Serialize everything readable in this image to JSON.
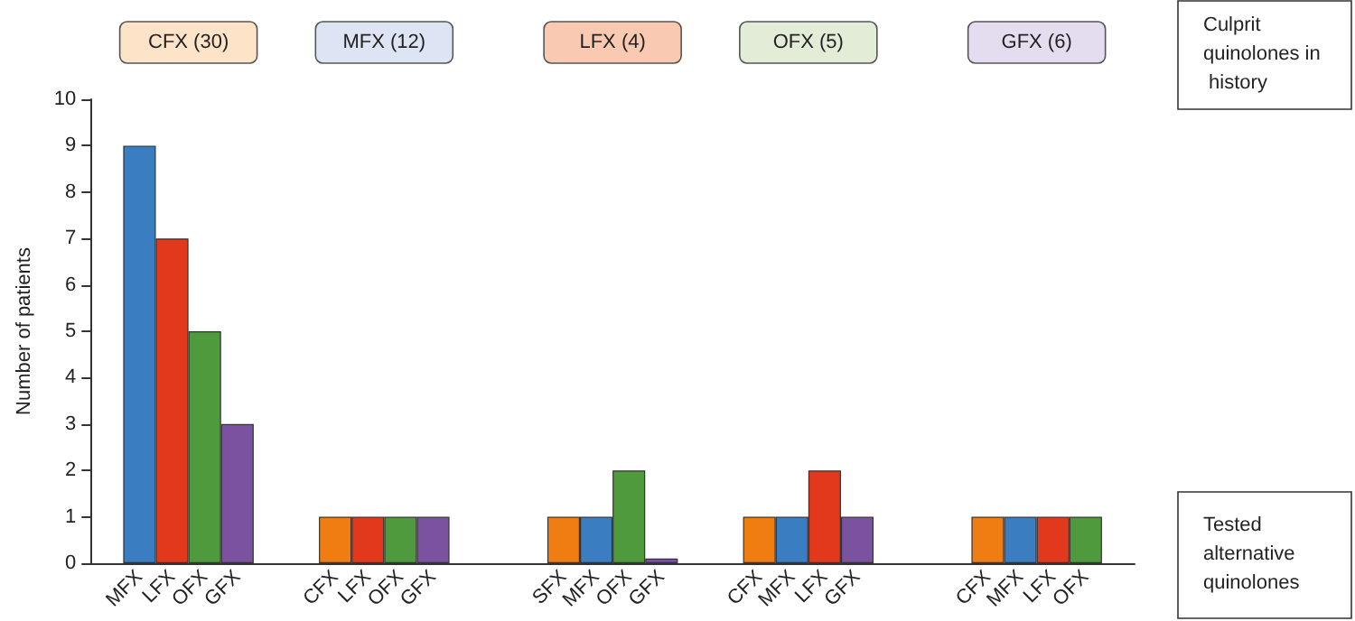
{
  "chart_data": {
    "type": "bar",
    "ylabel": "Number of patients",
    "categories": [
      null,
      "MFX",
      "LFX",
      "OFX",
      "GFX",
      null,
      null,
      "CFX",
      "LFX",
      "OFX",
      "GFX",
      null,
      null,
      null,
      "SFX",
      "MFX",
      "OFX",
      "GFX",
      null,
      null,
      "CFX",
      "MFX",
      "LFX",
      "GFX",
      null,
      null,
      null,
      "CFX",
      "MFX",
      "LFX",
      "OFX",
      null
    ],
    "values": [
      null,
      9,
      7,
      5,
      3,
      null,
      null,
      1,
      1,
      1,
      1,
      null,
      null,
      null,
      1,
      1,
      2,
      0.1,
      null,
      null,
      1,
      1,
      2,
      1,
      null,
      null,
      null,
      1,
      1,
      1,
      1,
      null
    ],
    "colors": [
      null,
      "#3a7dc1",
      "#e2391c",
      "#4e9a3c",
      "#7b52a0",
      null,
      null,
      "#f07d12",
      "#e2391c",
      "#4e9a3c",
      "#7b52a0",
      null,
      null,
      null,
      "#f07d12",
      "#3a7dc1",
      "#4e9a3c",
      "#7b52a0",
      null,
      null,
      "#f07d12",
      "#3a7dc1",
      "#e2391c",
      "#7b52a0",
      null,
      null,
      null,
      "#f07d12",
      "#3a7dc1",
      "#e2391c",
      "#4e9a3c",
      null
    ],
    "ylim": [
      0,
      10
    ],
    "yticks": [
      0,
      1,
      2,
      3,
      4,
      5,
      6,
      7,
      8,
      9,
      10
    ],
    "annotations": [
      "CFX (30)",
      "MFX (12)",
      "LFX (4)",
      "OFX (5)",
      "GFX (6)",
      "Culprit quinolones in history",
      "Tested alternative quinolones"
    ]
  }
}
